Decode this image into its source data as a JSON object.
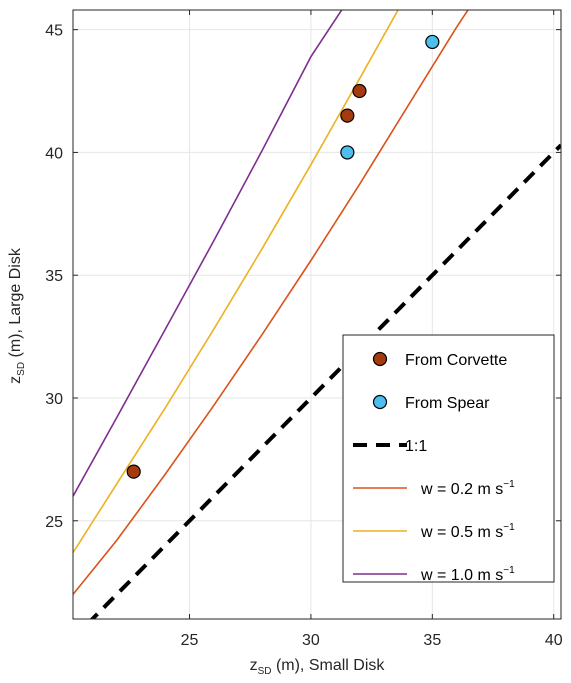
{
  "chart_data": {
    "type": "scatter",
    "xlabel": {
      "main": "z",
      "sub": "SD",
      "rest": " (m), Small Disk"
    },
    "ylabel": {
      "main": "z",
      "sub": "SD",
      "rest": " (m), Large Disk"
    },
    "xlim": [
      20.2,
      40.3
    ],
    "ylim": [
      21,
      45.8
    ],
    "xticks": [
      25,
      30,
      35,
      40
    ],
    "yticks": [
      25,
      30,
      35,
      40,
      45
    ],
    "grid": true,
    "legend_position": "lower-right",
    "series": [
      {
        "name": "From Corvette",
        "kind": "points",
        "color": "#A53A0E",
        "x": [
          22.7,
          31.5,
          32.0
        ],
        "y": [
          27.0,
          41.5,
          42.5
        ]
      },
      {
        "name": "From Spear",
        "kind": "points",
        "color": "#4DBEEE",
        "x": [
          31.5,
          35.0
        ],
        "y": [
          40.0,
          44.5
        ]
      },
      {
        "name": "1:1",
        "kind": "line",
        "style": "dashed",
        "color": "#000000",
        "x": [
          20.8,
          40.3
        ],
        "y": [
          20.8,
          40.3
        ]
      },
      {
        "name": "w = 0.2 m s",
        "sup": "−1",
        "kind": "line",
        "color": "#D95319",
        "x": [
          20.2,
          22.0,
          24.0,
          26.0,
          28.0,
          30.0,
          32.0,
          34.0,
          36.0,
          36.6
        ],
        "y": [
          22.0,
          24.2,
          26.9,
          29.7,
          32.6,
          35.6,
          38.7,
          41.9,
          45.1,
          46.0
        ]
      },
      {
        "name": "w = 0.5 m s",
        "sup": "−1",
        "kind": "line",
        "color": "#EDB120",
        "x": [
          20.2,
          22.0,
          24.0,
          26.0,
          28.0,
          30.0,
          32.0,
          33.7
        ],
        "y": [
          23.7,
          26.5,
          29.6,
          32.8,
          36.1,
          39.5,
          43.0,
          46.0
        ]
      },
      {
        "name": "w = 1.0 m s",
        "sup": "−1",
        "kind": "line",
        "color": "#7E2F8E",
        "x": [
          20.2,
          22.0,
          24.0,
          26.0,
          28.0,
          30.0,
          31.4
        ],
        "y": [
          26.0,
          29.2,
          32.8,
          36.4,
          40.1,
          43.9,
          46.0
        ]
      }
    ]
  }
}
